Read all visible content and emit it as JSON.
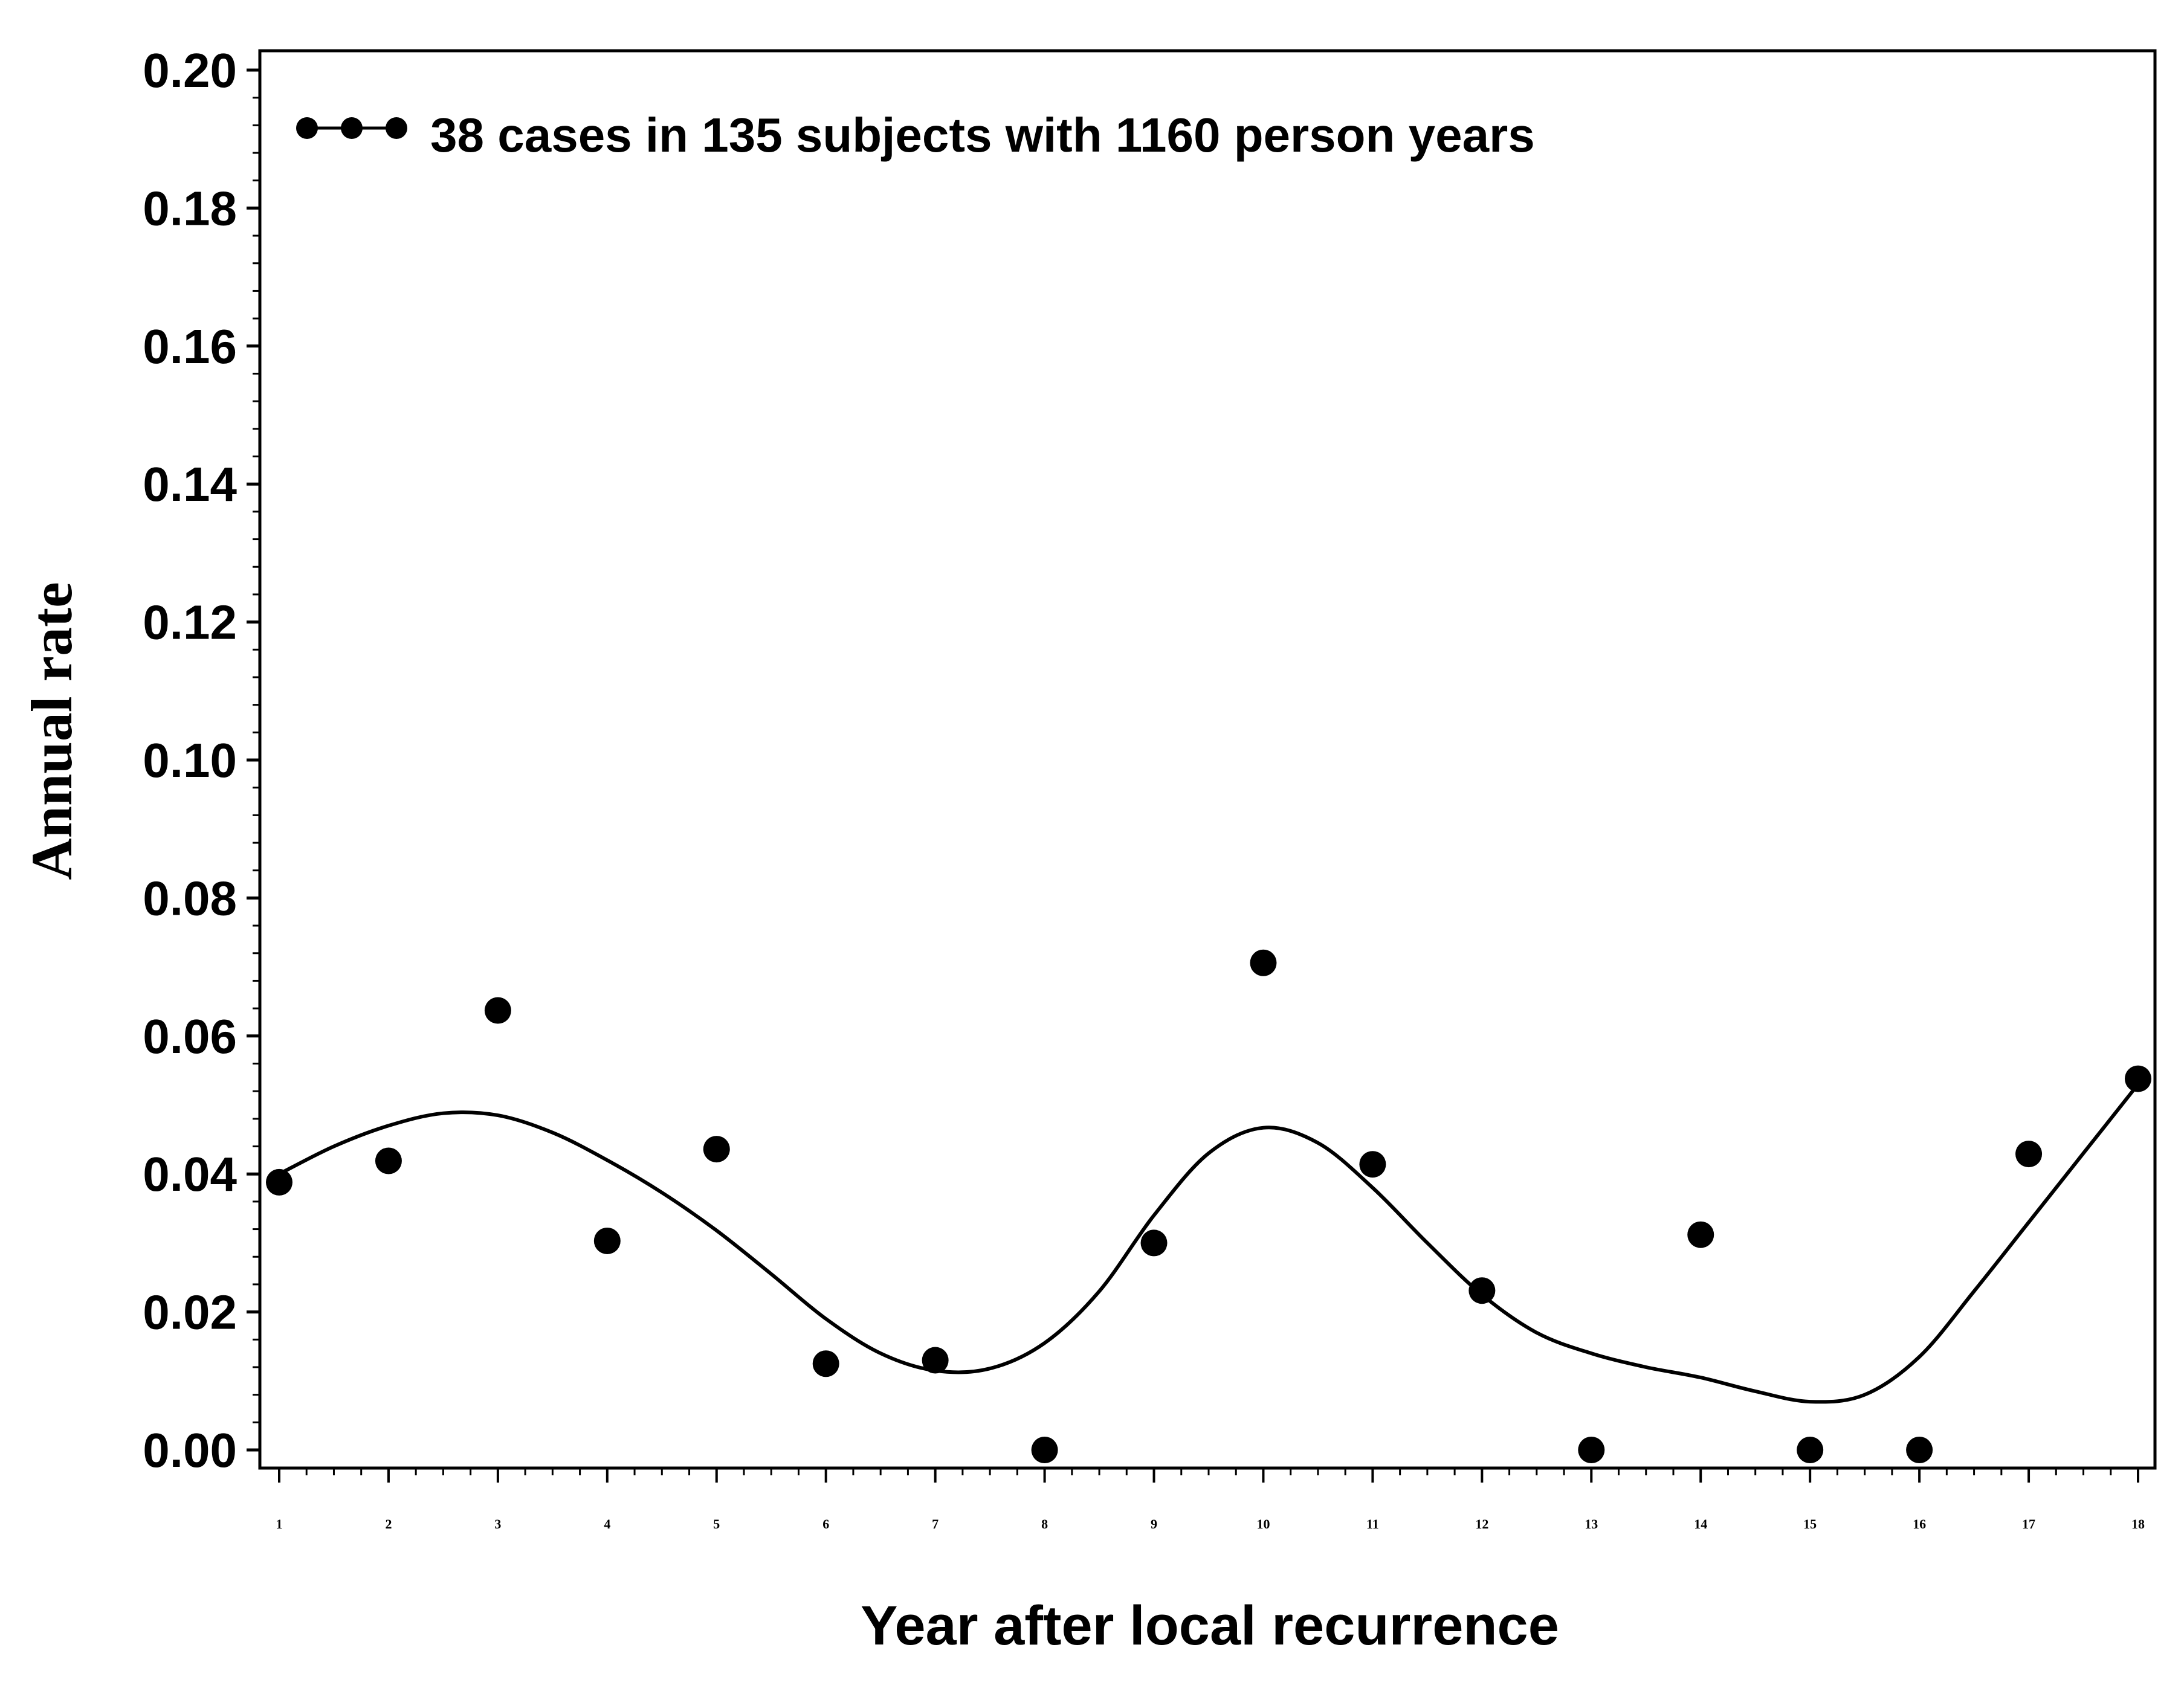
{
  "chart_data": {
    "type": "scatter",
    "xlabel": "Year after local recurrence",
    "ylabel": "Annual rate",
    "xlim": [
      1,
      18
    ],
    "ylim": [
      0.0,
      0.2
    ],
    "x_ticks": [
      "1",
      "2",
      "3",
      "4",
      "5",
      "6",
      "7",
      "8",
      "9",
      "10",
      "11",
      "12",
      "13",
      "14",
      "15",
      "16",
      "17",
      "18"
    ],
    "y_ticks": [
      "0.00",
      "0.02",
      "0.04",
      "0.06",
      "0.08",
      "0.10",
      "0.12",
      "0.14",
      "0.16",
      "0.18",
      "0.20"
    ],
    "grid": false,
    "legend_position": "top-left",
    "series": [
      {
        "name": "38 cases in 135 subjects with 1160 person years",
        "marker": "circle",
        "color": "#000000",
        "x": [
          1,
          2,
          3,
          4,
          5,
          6,
          7,
          8,
          9,
          10,
          11,
          12,
          13,
          14,
          15,
          16,
          17,
          18
        ],
        "y": [
          0.0388,
          0.0419,
          0.0637,
          0.0303,
          0.0436,
          0.0125,
          0.013,
          0.0,
          0.03,
          0.0706,
          0.0414,
          0.0231,
          0.0,
          0.0312,
          0.0,
          0.0,
          0.0429,
          0.0538
        ]
      }
    ],
    "smooth_curve": {
      "x": [
        1,
        1.5,
        2,
        2.5,
        3,
        3.5,
        4,
        4.5,
        5,
        5.5,
        6,
        6.5,
        7,
        7.5,
        8,
        8.5,
        9,
        9.5,
        10,
        10.5,
        11,
        11.5,
        12,
        12.5,
        13,
        13.5,
        14,
        14.5,
        15,
        15.5,
        16,
        16.5,
        17,
        17.5,
        18
      ],
      "y": [
        0.04,
        0.044,
        0.047,
        0.0488,
        0.0485,
        0.046,
        0.042,
        0.0373,
        0.0318,
        0.0255,
        0.019,
        0.014,
        0.0115,
        0.0118,
        0.0155,
        0.023,
        0.034,
        0.043,
        0.0467,
        0.0445,
        0.038,
        0.03,
        0.0225,
        0.017,
        0.014,
        0.012,
        0.0105,
        0.0085,
        0.007,
        0.008,
        0.0135,
        0.023,
        0.033,
        0.043,
        0.053
      ]
    }
  }
}
